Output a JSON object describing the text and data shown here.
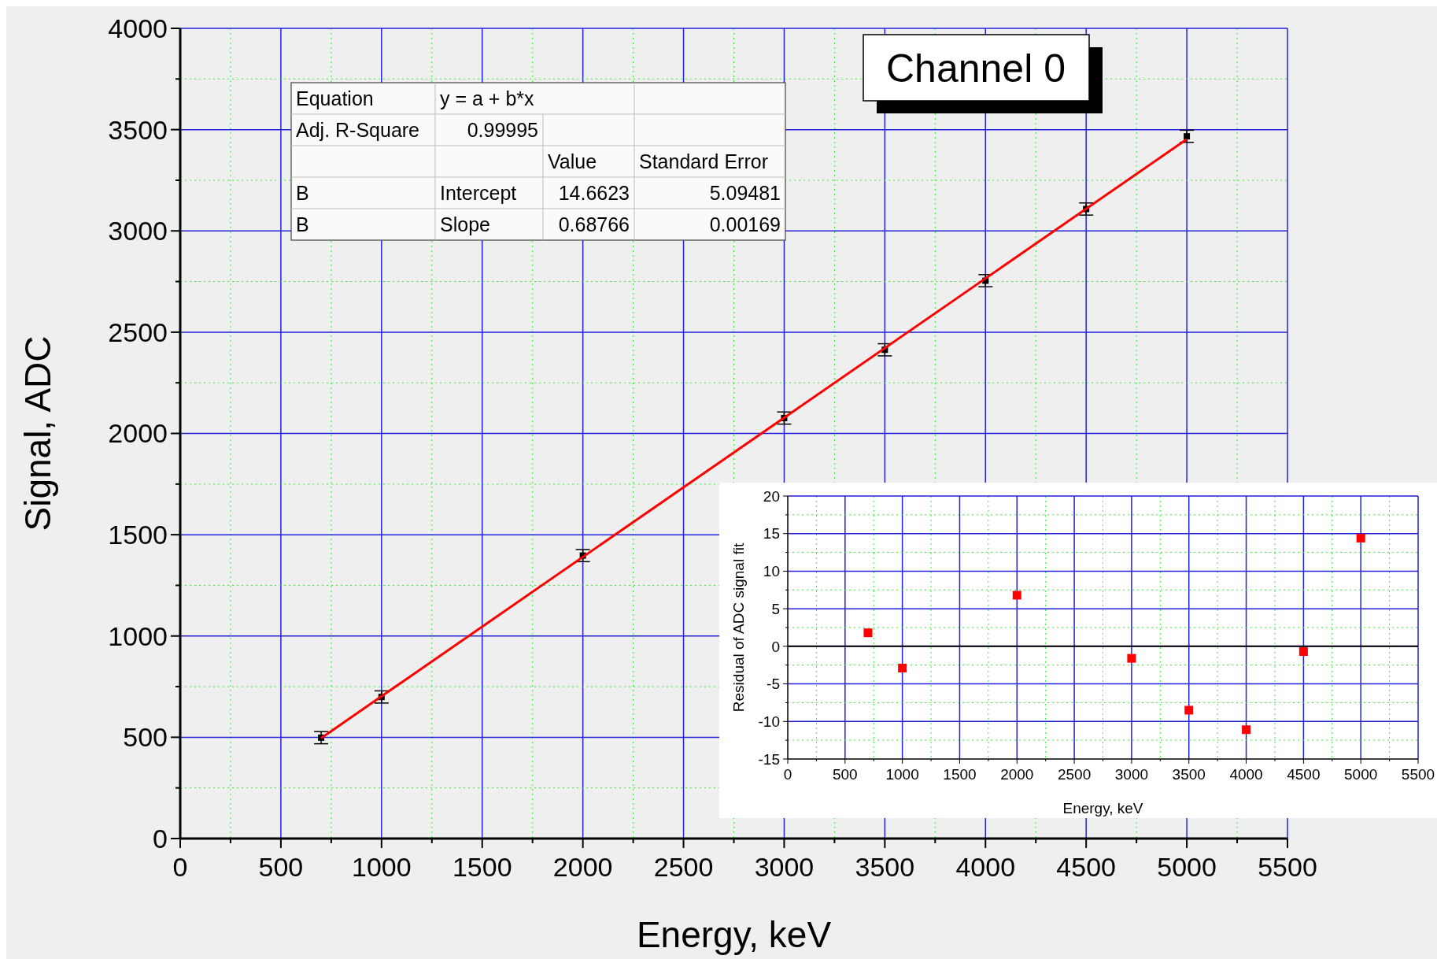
{
  "chart_data": [
    {
      "type": "scatter",
      "title": "Channel 0",
      "xlabel": "Energy, keV",
      "ylabel": "Signal, ADC",
      "grid": true,
      "xlim": [
        0,
        5500
      ],
      "ylim": [
        0,
        4000
      ],
      "xticks": [
        0,
        {
          "value": 250,
          "label": null
        },
        500,
        {
          "value": 750,
          "label": null
        },
        1000,
        {
          "value": 1250,
          "label": null
        },
        1500,
        {
          "value": 1750,
          "label": null
        },
        2000,
        {
          "value": 2250,
          "label": null
        },
        2500,
        {
          "value": 2750,
          "label": null
        },
        3000,
        {
          "value": 3250,
          "label": null
        },
        3500,
        {
          "value": 3750,
          "label": null
        },
        4000,
        {
          "value": 4250,
          "label": null
        },
        4500,
        {
          "value": 4750,
          "label": null
        },
        5000,
        {
          "value": 5250,
          "label": null
        },
        5500
      ],
      "yticks": [
        0,
        {
          "value": 250,
          "label": null
        },
        500,
        {
          "value": 750,
          "label": null
        },
        1000,
        {
          "value": 1250,
          "label": null
        },
        1500,
        {
          "value": 1750,
          "label": null
        },
        2000,
        {
          "value": 2250,
          "label": null
        },
        2500,
        {
          "value": 2750,
          "label": null
        },
        3000,
        {
          "value": 3250,
          "label": null
        },
        3500,
        {
          "value": 3750,
          "label": null
        },
        4000
      ],
      "series": [
        {
          "color": "#000000",
          "marker": "square",
          "x": [
            700,
            1000,
            2000,
            3000,
            3500,
            4000,
            4500,
            5000
          ],
          "values": [
            498,
            699,
            1397,
            2076,
            2413,
            2754,
            3108,
            3467
          ],
          "errors": [
            30,
            30,
            30,
            30,
            30,
            30,
            30,
            30
          ]
        },
        {
          "type": "line",
          "color": "#ff0000",
          "x": [
            700,
            5000
          ],
          "values": [
            496,
            3453
          ]
        }
      ],
      "annotations": [
        "Equation",
        "y = a + b*x",
        "Adj. R-Square",
        "0.99995",
        "Value",
        "Standard Error",
        "B",
        "Intercept",
        "14.6623",
        "5.09481",
        "B",
        "Slope",
        "0.68766",
        "0.00169"
      ]
    },
    {
      "type": "scatter",
      "xlabel": "Energy, keV",
      "ylabel": "Residual of ADC signal fit",
      "marker": "square",
      "grid": true,
      "xlim": [
        0,
        5500
      ],
      "ylim": [
        -15,
        20
      ],
      "xticks": [
        0,
        {
          "value": 250,
          "label": null
        },
        500,
        {
          "value": 750,
          "label": null
        },
        1000,
        {
          "value": 1250,
          "label": null
        },
        1500,
        {
          "value": 1750,
          "label": null
        },
        2000,
        {
          "value": 2250,
          "label": null
        },
        2500,
        {
          "value": 2750,
          "label": null
        },
        3000,
        {
          "value": 3250,
          "label": null
        },
        3500,
        {
          "value": 3750,
          "label": null
        },
        4000,
        {
          "value": 4250,
          "label": null
        },
        4500,
        {
          "value": 4750,
          "label": null
        },
        5000,
        {
          "value": 5250,
          "label": null
        },
        5500
      ],
      "yticks": [
        -15,
        {
          "value": -12.5,
          "label": null
        },
        -10,
        {
          "value": -7.5,
          "label": null
        },
        -5,
        {
          "value": -2.5,
          "label": null
        },
        0,
        {
          "value": 2.5,
          "label": null
        },
        5,
        {
          "value": 7.5,
          "label": null
        },
        10,
        {
          "value": 12.5,
          "label": null
        },
        15,
        {
          "value": 17.5,
          "label": null
        },
        20
      ],
      "ref_lines": [
        {
          "axis": "y",
          "value": 0,
          "color": "#000000"
        }
      ],
      "series": [
        {
          "color": "#ff0000",
          "x": [
            700,
            1000,
            2000,
            3000,
            3500,
            4000,
            4500,
            5000
          ],
          "values": [
            1.8,
            -2.9,
            6.8,
            -1.6,
            -8.5,
            -11.1,
            -0.7,
            14.4
          ]
        }
      ]
    }
  ]
}
